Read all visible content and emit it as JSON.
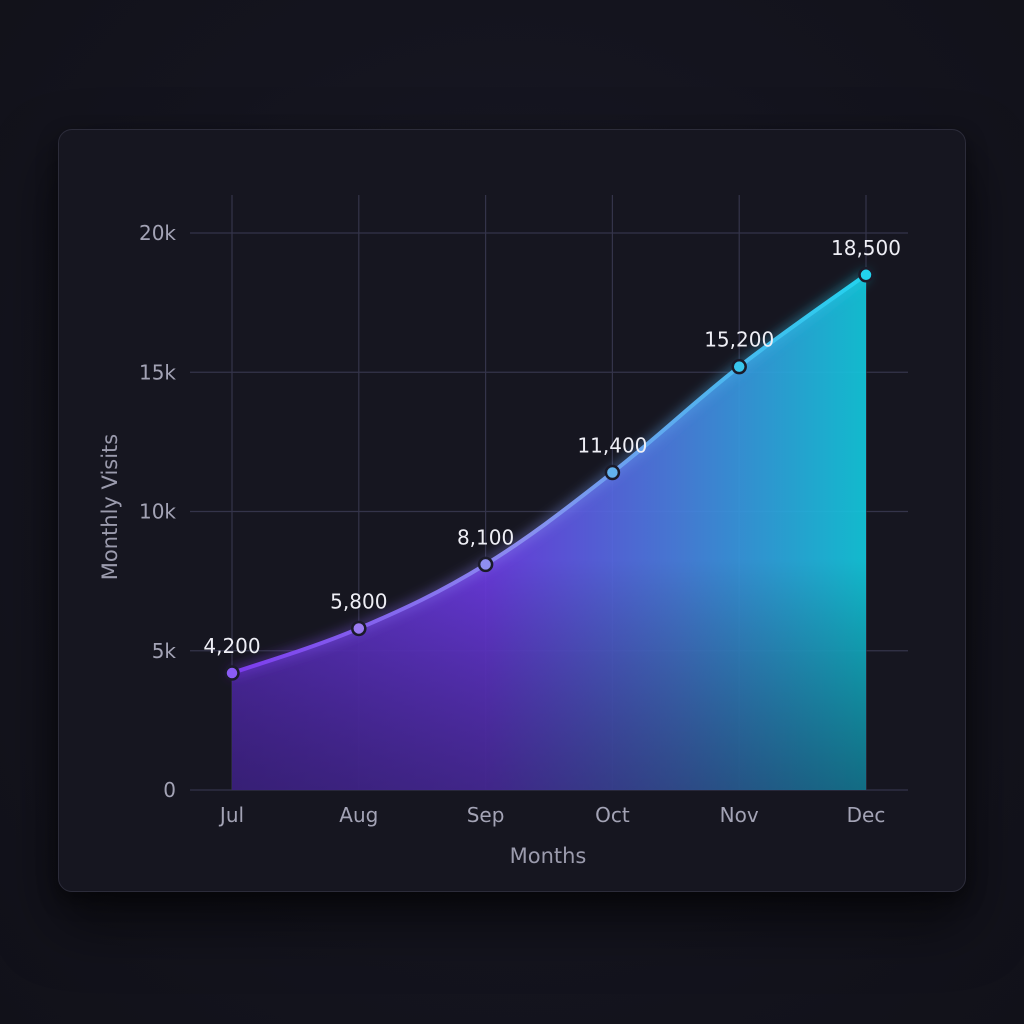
{
  "chart_data": {
    "type": "area",
    "title": "",
    "xlabel": "Months",
    "ylabel": "Monthly Visits",
    "categories": [
      "Jul",
      "Aug",
      "Sep",
      "Oct",
      "Nov",
      "Dec"
    ],
    "series": [
      {
        "values": [
          4200,
          5800,
          8100,
          11400,
          15200,
          18500
        ],
        "value_labels": [
          "4,200",
          "5,800",
          "8,100",
          "11,400",
          "15,200",
          "18,500"
        ]
      }
    ],
    "ylim": [
      0,
      20000
    ],
    "yticks": [
      0,
      5000,
      10000,
      15000,
      20000
    ],
    "ytick_labels": [
      "0",
      "5k",
      "10k",
      "15k",
      "20k"
    ],
    "grid": true,
    "legend": "none",
    "colors": {
      "start": "#7c3aed",
      "end": "#22d3ee",
      "grid": "#34344a",
      "card_bg": "#161620"
    }
  }
}
